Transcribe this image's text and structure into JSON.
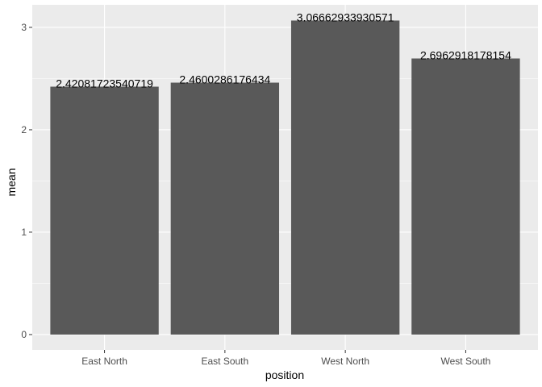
{
  "chart_data": {
    "type": "bar",
    "title": "",
    "xlabel": "position",
    "ylabel": "mean",
    "categories": [
      "East North",
      "East South",
      "West North",
      "West South"
    ],
    "values": [
      2.42081723540719,
      2.4600286176434,
      3.06662933930571,
      2.6962918178154
    ],
    "value_labels": [
      "2.42081723540719",
      "2.4600286176434",
      "3.06662933930571",
      "2.6962918178154"
    ],
    "yticks": [
      0,
      1,
      2,
      3
    ],
    "ylim": [
      -0.15,
      3.22
    ],
    "grid": true,
    "legend": "none"
  },
  "colors": {
    "panel_background": "#ebebeb",
    "grid_major": "#ffffff",
    "bar_fill": "#595959",
    "tick_text": "#4d4d4d",
    "tick_mark": "#333333",
    "label_text": "#000000"
  }
}
